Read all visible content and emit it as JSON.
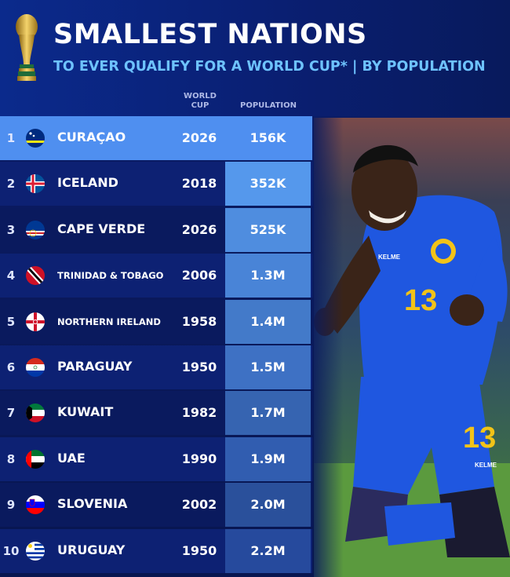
{
  "header": {
    "title": "SMALLEST NATIONS",
    "subtitle": "TO EVER QUALIFY FOR A WORLD CUP* | BY POPULATION",
    "col_world_cup_line1": "WORLD",
    "col_world_cup_line2": "CUP",
    "col_population": "POPULATION"
  },
  "rows": [
    {
      "rank": "1",
      "country": "CURAÇAO",
      "year": "2026",
      "population": "156K",
      "flag": "curacao-flag-icon"
    },
    {
      "rank": "2",
      "country": "ICELAND",
      "year": "2018",
      "population": "352K",
      "flag": "iceland-flag-icon"
    },
    {
      "rank": "3",
      "country": "CAPE VERDE",
      "year": "2026",
      "population": "525K",
      "flag": "cape-verde-flag-icon"
    },
    {
      "rank": "4",
      "country": "TRINIDAD & TOBAGO",
      "year": "2006",
      "population": "1.3M",
      "flag": "trinidad-tobago-flag-icon"
    },
    {
      "rank": "5",
      "country": "NORTHERN IRELAND",
      "year": "1958",
      "population": "1.4M",
      "flag": "northern-ireland-flag-icon"
    },
    {
      "rank": "6",
      "country": "PARAGUAY",
      "year": "1950",
      "population": "1.5M",
      "flag": "paraguay-flag-icon"
    },
    {
      "rank": "7",
      "country": "KUWAIT",
      "year": "1982",
      "population": "1.7M",
      "flag": "kuwait-flag-icon"
    },
    {
      "rank": "8",
      "country": "UAE",
      "year": "1990",
      "population": "1.9M",
      "flag": "uae-flag-icon"
    },
    {
      "rank": "9",
      "country": "SLOVENIA",
      "year": "2002",
      "population": "2.0M",
      "flag": "slovenia-flag-icon"
    },
    {
      "rank": "10",
      "country": "URUGUAY",
      "year": "1950",
      "population": "2.2M",
      "flag": "uruguay-flag-icon"
    }
  ],
  "photo": {
    "jersey_number": "13",
    "kit_brand": "KELME"
  },
  "colors": {
    "highlight_row": "#4f8ff0",
    "pop_highlight": "#5a9ff2",
    "row_dark": "#0a1a5e",
    "row_alt": "#0d2173",
    "subtitle": "#6ec3ff",
    "jersey": "#1f57e0"
  }
}
